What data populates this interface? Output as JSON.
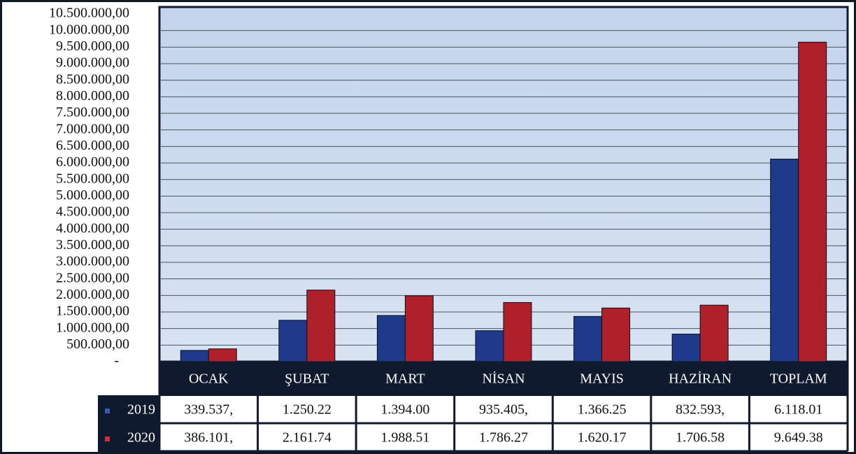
{
  "chart_data": {
    "type": "bar",
    "categories": [
      "OCAK",
      "ŞUBAT",
      "MART",
      "NİSAN",
      "MAYIS",
      "HAZİRAN",
      "TOPLAM"
    ],
    "series": [
      {
        "name": "2019",
        "color": "#1f3a8a",
        "values": [
          339537,
          1250220,
          1394000,
          935405,
          1366250,
          832593,
          6118010
        ],
        "value_labels": [
          "339.537,",
          "1.250.22",
          "1.394.00",
          "935.405,",
          "1.366.25",
          "832.593,",
          "6.118.01"
        ]
      },
      {
        "name": "2020",
        "color": "#b0202a",
        "values": [
          386101,
          2161740,
          1988510,
          1786270,
          1620170,
          1706580,
          9649380
        ],
        "value_labels": [
          "386.101,",
          "2.161.74",
          "1.988.51",
          "1.786.27",
          "1.620.17",
          "1.706.58",
          "9.649.38"
        ]
      }
    ],
    "ylim": [
      0,
      10500000
    ],
    "yticks": [
      {
        "value": 0,
        "label": "-"
      },
      {
        "value": 500000,
        "label": "500.000,00"
      },
      {
        "value": 1000000,
        "label": "1.000.000,00"
      },
      {
        "value": 1500000,
        "label": "1.500.000,00"
      },
      {
        "value": 2000000,
        "label": "2.000.000,00"
      },
      {
        "value": 2500000,
        "label": "2.500.000,00"
      },
      {
        "value": 3000000,
        "label": "3.000.000,00"
      },
      {
        "value": 3500000,
        "label": "3.500.000,00"
      },
      {
        "value": 4000000,
        "label": "4.000.000,00"
      },
      {
        "value": 4500000,
        "label": "4.500.000,00"
      },
      {
        "value": 5000000,
        "label": "5.000.000,00"
      },
      {
        "value": 5500000,
        "label": "5.500.000,00"
      },
      {
        "value": 6000000,
        "label": "6.000.000,00"
      },
      {
        "value": 6500000,
        "label": "6.500.000,00"
      },
      {
        "value": 7000000,
        "label": "7.000.000,00"
      },
      {
        "value": 7500000,
        "label": "7.500.000,00"
      },
      {
        "value": 8000000,
        "label": "8.000.000,00"
      },
      {
        "value": 8500000,
        "label": "8.500.000,00"
      },
      {
        "value": 9000000,
        "label": "9.000.000,00"
      },
      {
        "value": 9500000,
        "label": "9.500.000,00"
      },
      {
        "value": 10000000,
        "label": "10.000.000,00"
      },
      {
        "value": 10500000,
        "label": "10.500.000,00"
      }
    ],
    "grid": true
  }
}
